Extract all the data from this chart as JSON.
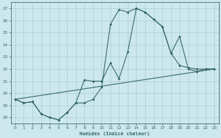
{
  "xlabel": "Humidex (Indice chaleur)",
  "xlim": [
    -0.5,
    23.5
  ],
  "ylim": [
    17.5,
    27.5
  ],
  "xticks": [
    0,
    1,
    2,
    3,
    4,
    5,
    6,
    7,
    8,
    9,
    10,
    11,
    12,
    13,
    14,
    15,
    16,
    17,
    18,
    19,
    20,
    21,
    22,
    23
  ],
  "yticks": [
    18,
    19,
    20,
    21,
    22,
    23,
    24,
    25,
    26,
    27
  ],
  "background_color": "#cce8ec",
  "grid_color": "#aacccc",
  "line_color": "#336666",
  "line1_x": [
    0,
    1,
    2,
    3,
    4,
    5,
    6,
    7,
    8,
    9,
    10,
    11,
    12,
    13,
    14,
    15,
    16,
    17,
    18,
    19,
    20,
    21,
    22,
    23
  ],
  "line1_y": [
    19.5,
    19.2,
    19.3,
    18.3,
    18.0,
    17.8,
    18.4,
    19.2,
    21.1,
    21.0,
    21.0,
    22.5,
    21.2,
    23.4,
    27.0,
    26.7,
    26.1,
    25.5,
    23.3,
    22.3,
    22.1,
    22.0,
    22.0,
    22.0
  ],
  "line2_x": [
    0,
    1,
    2,
    3,
    4,
    5,
    6,
    7,
    8,
    9,
    10,
    11,
    12,
    13,
    14,
    15,
    16,
    17,
    18,
    19,
    20,
    21,
    22,
    23
  ],
  "line2_y": [
    19.5,
    19.2,
    19.3,
    18.3,
    18.0,
    17.8,
    18.4,
    19.2,
    19.2,
    19.5,
    20.5,
    25.7,
    26.9,
    26.7,
    27.0,
    26.7,
    26.1,
    25.5,
    23.3,
    24.7,
    22.0,
    21.8,
    22.0,
    22.0
  ],
  "line3_x": [
    0,
    23
  ],
  "line3_y": [
    19.5,
    22.0
  ],
  "figsize": [
    3.2,
    2.0
  ],
  "dpi": 100
}
